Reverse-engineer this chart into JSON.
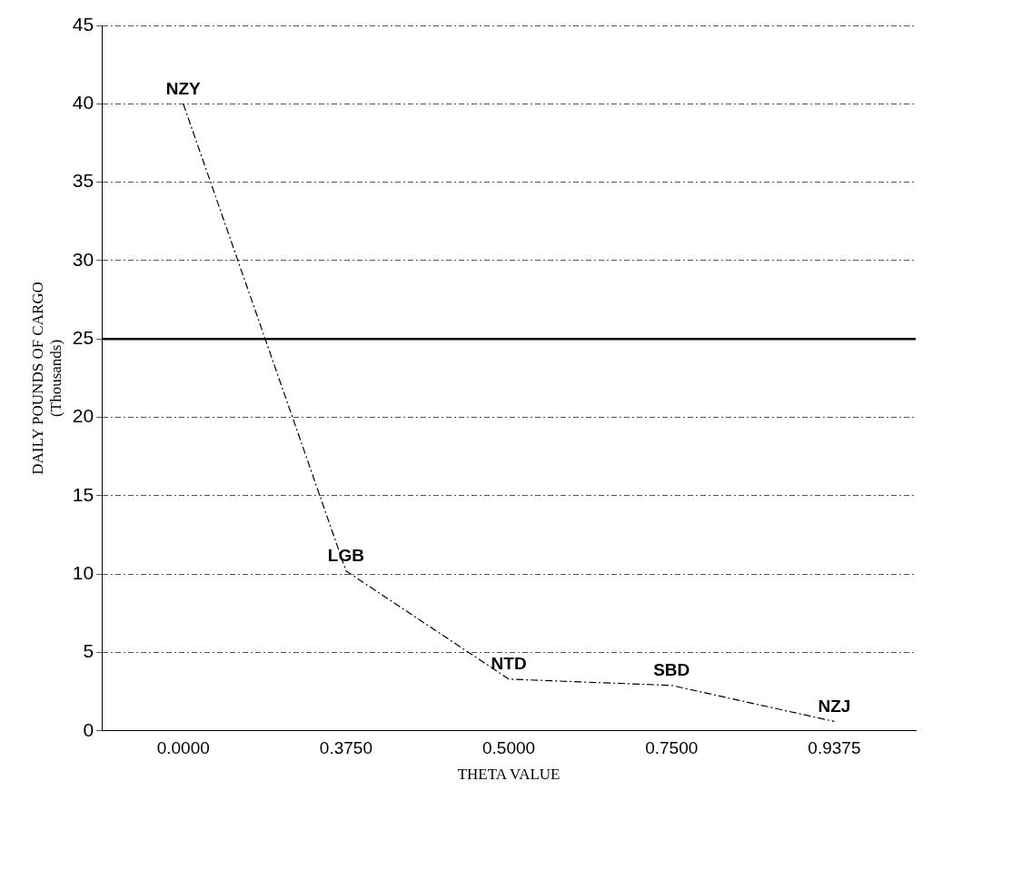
{
  "chart_data": {
    "type": "line",
    "xlabel": "THETA VALUE",
    "ylabel": "DAILY POUNDS OF CARGO\n(Thousands)",
    "categories": [
      "0.0000",
      "0.3750",
      "0.5000",
      "0.7500",
      "0.9375"
    ],
    "series": [
      {
        "color": "#000000",
        "values": [
          40,
          10.2,
          3.3,
          2.9,
          0.6
        ]
      }
    ],
    "ylim": [
      0,
      45
    ],
    "yticks": [
      0,
      5,
      10,
      15,
      20,
      25,
      30,
      35,
      40,
      45
    ],
    "grid": "y",
    "legend": false,
    "marker": "none",
    "line_style": "dashed",
    "ref_lines": [
      {
        "axis": "y",
        "value": 25,
        "color": "#000000"
      }
    ],
    "annotations": [
      {
        "text": "NZY",
        "x": "0.0000",
        "y": 40
      },
      {
        "text": "LGB",
        "x": "0.3750",
        "y": 10.2
      },
      {
        "text": "NTD",
        "x": "0.5000",
        "y": 3.3
      },
      {
        "text": "SBD",
        "x": "0.7500",
        "y": 2.9
      },
      {
        "text": "NZJ",
        "x": "0.9375",
        "y": 0.6
      }
    ]
  }
}
